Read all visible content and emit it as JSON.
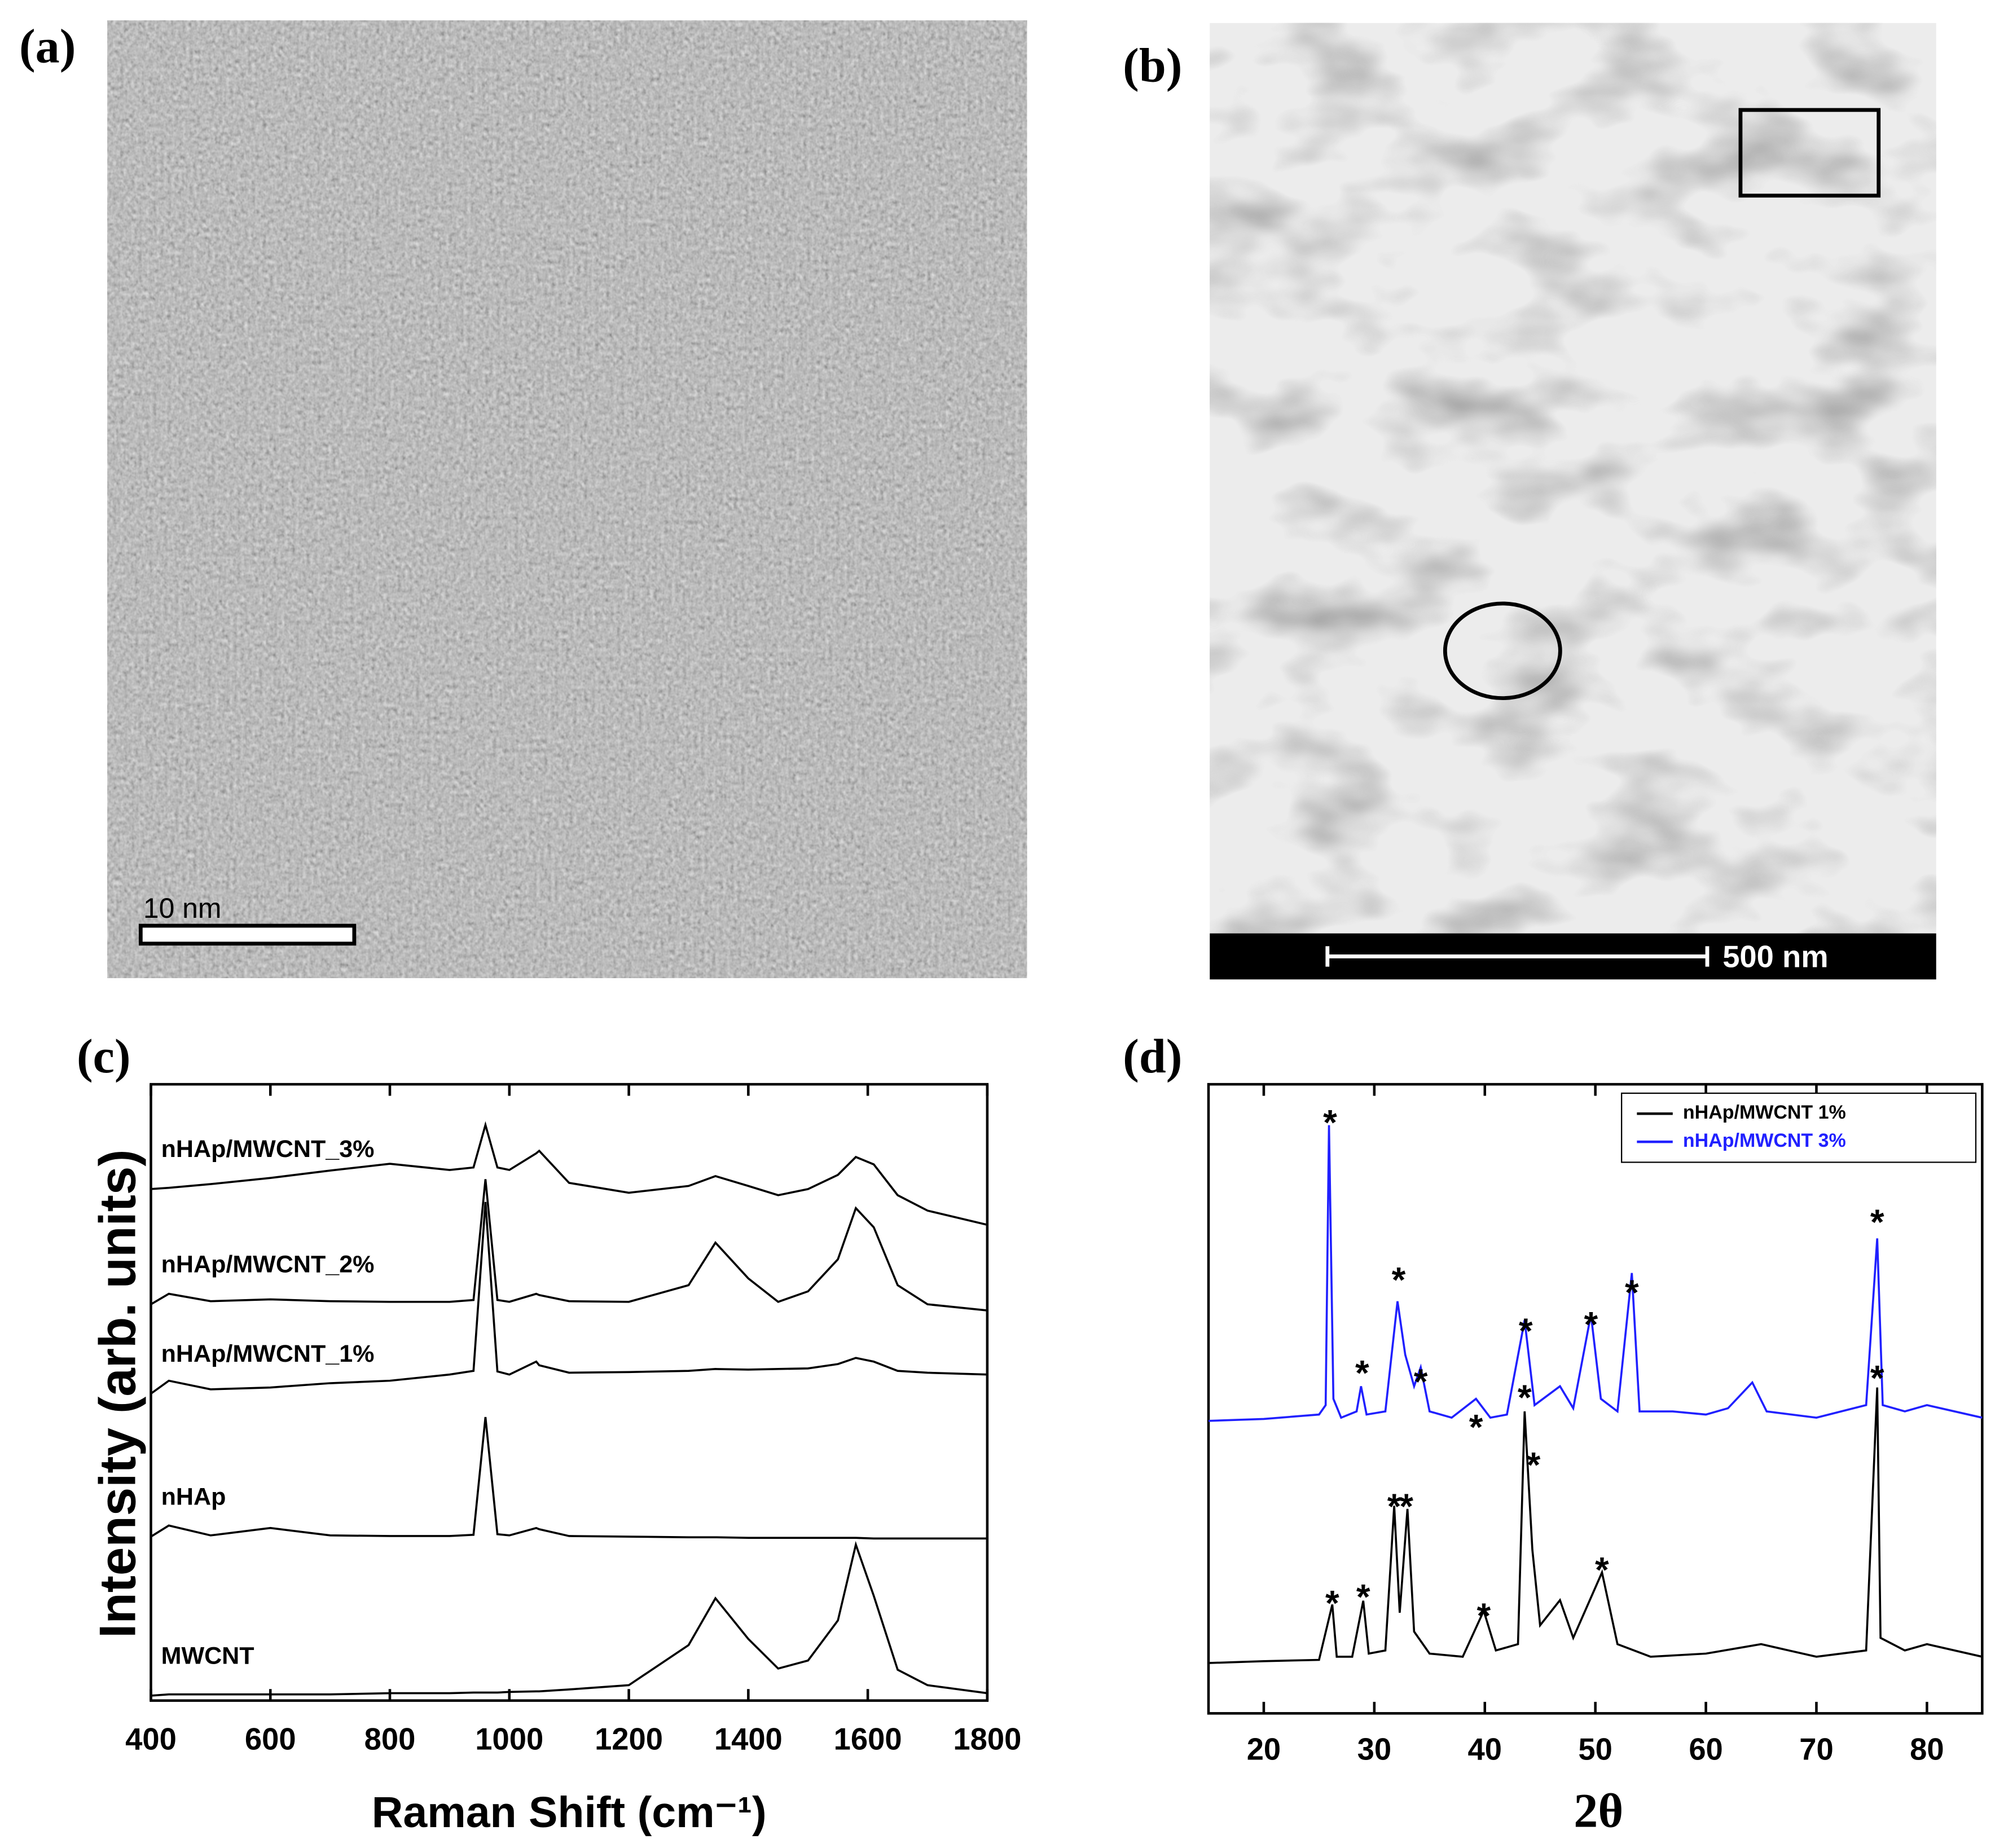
{
  "panels": [
    {
      "label": "(a)",
      "scale_bar": "10 nm"
    },
    {
      "label": "(b)",
      "scale_bar": "500 nm"
    }
  ],
  "chart_data": [
    {
      "type": "line",
      "panel_label": "(c)",
      "x_label": "Raman Shift (cm⁻¹)",
      "y_label": "Intensity (arb. units)",
      "xlim": [
        400,
        1800
      ],
      "xticks": [
        400,
        600,
        800,
        1000,
        1200,
        1400,
        1600,
        1800
      ],
      "ylim": [
        0,
        100
      ],
      "x": [
        400,
        430,
        500,
        600,
        700,
        800,
        900,
        940,
        960,
        980,
        1000,
        1045,
        1050,
        1100,
        1200,
        1300,
        1345,
        1400,
        1450,
        1500,
        1550,
        1580,
        1610,
        1650,
        1700,
        1800
      ],
      "series": [
        {
          "name": "nHAp/MWCNT_3%",
          "color": "#000000",
          "values": [
            83,
            83.2,
            83.8,
            84.8,
            86,
            87.1,
            86.1,
            86.5,
            93.4,
            86.5,
            86.1,
            88.8,
            89.2,
            84,
            82.4,
            83.5,
            85.1,
            83.5,
            82,
            83,
            85.3,
            88.2,
            87,
            82,
            79.5,
            77.2
          ]
        },
        {
          "name": "nHAp/MWCNT_2%",
          "color": "#000000",
          "values": [
            64.3,
            66,
            64.8,
            65.1,
            64.8,
            64.7,
            64.7,
            65,
            84.6,
            65,
            64.7,
            66,
            65.8,
            64.8,
            64.7,
            67.4,
            74.3,
            68.5,
            64.7,
            66.4,
            71.6,
            79.9,
            76.8,
            67.4,
            64.3,
            63.3
          ]
        },
        {
          "name": "nHAp/MWCNT_1%",
          "color": "#000000",
          "values": [
            49.8,
            51.9,
            50.5,
            50.8,
            51.5,
            51.9,
            52.9,
            53.5,
            80.9,
            53.4,
            52.9,
            55,
            54.4,
            53.2,
            53.3,
            53.5,
            53.8,
            53.7,
            53.8,
            53.9,
            54.6,
            55.6,
            55,
            53.5,
            53.2,
            52.9
          ]
        },
        {
          "name": "nHAp",
          "color": "#000000",
          "values": [
            26.6,
            28.4,
            26.8,
            28,
            26.8,
            26.7,
            26.7,
            26.9,
            46,
            27,
            26.8,
            28,
            27.8,
            26.7,
            26.6,
            26.5,
            26.5,
            26.4,
            26.4,
            26.4,
            26.4,
            26.4,
            26.3,
            26.3,
            26.3,
            26.3
          ]
        },
        {
          "name": "MWCNT",
          "color": "#000000",
          "values": [
            0.8,
            1,
            1,
            1,
            1,
            1.2,
            1.2,
            1.3,
            1.3,
            1.3,
            1.4,
            1.5,
            1.5,
            1.8,
            2.5,
            9,
            16.6,
            10,
            5.2,
            6.5,
            13,
            25.3,
            17,
            5,
            2.5,
            1.2
          ]
        }
      ]
    },
    {
      "type": "line",
      "panel_label": "(d)",
      "x_label": "2θ",
      "legend": "upper right",
      "xlim": [
        15,
        85
      ],
      "xticks": [
        20,
        30,
        40,
        50,
        60,
        70,
        80
      ],
      "ylim": [
        0,
        100
      ],
      "series": [
        {
          "name": "nHAp/MWCNT 1%",
          "color": "#000000",
          "x": [
            15,
            20,
            25,
            26.2,
            26.6,
            28,
            29,
            29.5,
            31,
            31.8,
            32.3,
            33,
            33.6,
            35,
            38,
            39.9,
            41,
            43,
            43.6,
            44.3,
            45,
            46.8,
            48,
            50.6,
            52,
            55,
            60,
            65,
            70,
            74.5,
            75.5,
            75.8,
            78,
            80,
            85
          ],
          "values": [
            8,
            8.3,
            8.5,
            17.3,
            9,
            9,
            17.9,
            9.5,
            10,
            33,
            16,
            32.5,
            13,
            9.5,
            9,
            16.3,
            10,
            11,
            48,
            26,
            14,
            18,
            12,
            22.4,
            11,
            9,
            9.5,
            11,
            9,
            10,
            51.8,
            12,
            10,
            11,
            9
          ]
        },
        {
          "name": "nHAp/MWCNT 3%",
          "color": "#2020ff",
          "x": [
            15,
            20,
            25,
            25.6,
            25.9,
            26.3,
            27,
            28.4,
            28.8,
            29.3,
            31,
            32.1,
            32.8,
            33.6,
            34.2,
            35,
            37,
            39.2,
            40.5,
            42,
            43.6,
            44.5,
            46.8,
            48,
            49.6,
            50.5,
            52,
            53.3,
            54,
            57,
            60,
            62,
            64.2,
            65.5,
            70,
            74.5,
            75.5,
            76,
            78,
            80,
            85
          ],
          "values": [
            46.5,
            46.8,
            47.5,
            49,
            93.5,
            50,
            47,
            48,
            52,
            47.5,
            48,
            65.5,
            57,
            52,
            55,
            48,
            47,
            50,
            47,
            47.5,
            62.5,
            49,
            52,
            48.5,
            63.4,
            50,
            48,
            70,
            48,
            48,
            47.5,
            48.5,
            52.6,
            48,
            47,
            49,
            75.5,
            49,
            48,
            49,
            47
          ]
        }
      ],
      "annotations": [
        {
          "text": "*",
          "x": 26,
          "y": 95.1
        },
        {
          "text": "*",
          "x": 28.9,
          "y": 55.3
        },
        {
          "text": "*",
          "x": 32.2,
          "y": 70.1
        },
        {
          "text": "*",
          "x": 34.2,
          "y": 53.9
        },
        {
          "text": "*",
          "x": 39.2,
          "y": 46.7
        },
        {
          "text": "*",
          "x": 43.7,
          "y": 62
        },
        {
          "text": "*",
          "x": 49.6,
          "y": 63
        },
        {
          "text": "*",
          "x": 53.3,
          "y": 68.1
        },
        {
          "text": "*",
          "x": 75.5,
          "y": 79.3
        },
        {
          "text": "*",
          "x": 26.2,
          "y": 18.7
        },
        {
          "text": "*",
          "x": 29,
          "y": 19.7
        },
        {
          "text": "*",
          "x": 31.8,
          "y": 34.1
        },
        {
          "text": "*",
          "x": 32.9,
          "y": 34.1
        },
        {
          "text": "*",
          "x": 39.9,
          "y": 16.7
        },
        {
          "text": "*",
          "x": 43.6,
          "y": 51.4
        },
        {
          "text": "*",
          "x": 44.4,
          "y": 40.7
        },
        {
          "text": "*",
          "x": 50.6,
          "y": 24
        },
        {
          "text": "*",
          "x": 75.5,
          "y": 54.5
        }
      ]
    }
  ]
}
